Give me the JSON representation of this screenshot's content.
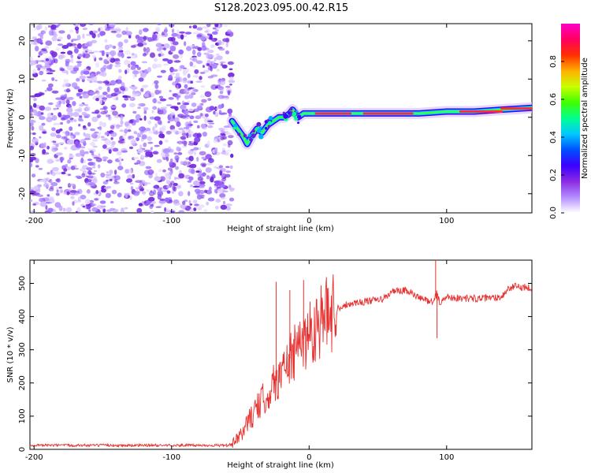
{
  "title": "S128.2023.095.00.42.R15",
  "chart_data": [
    {
      "type": "heatmap",
      "title": "S128.2023.095.00.42.R15",
      "xlabel": "Height of straight line (km)",
      "ylabel": "Frequency (Hz)",
      "xlim": [
        -203,
        162
      ],
      "ylim": [
        -25,
        24.5
      ],
      "xticks": [
        -200,
        -100,
        0,
        100
      ],
      "yticks": [
        -20,
        -10,
        0,
        10,
        20
      ],
      "noise_region_x": [
        -203,
        -56
      ],
      "signal_track": {
        "x": [
          -56,
          -52,
          -48,
          -45,
          -42,
          -38,
          -34,
          -30,
          -26,
          -22,
          -18,
          -14,
          -12,
          -10,
          -8,
          -4,
          0,
          10,
          20,
          40,
          60,
          80,
          100,
          120,
          140,
          162
        ],
        "freq": [
          -1,
          -3,
          -5,
          -7,
          -5,
          -3,
          -4,
          -2,
          -1,
          0,
          0,
          1,
          2,
          1,
          0,
          1,
          1,
          1,
          1,
          1,
          1,
          1,
          1.5,
          1.5,
          2,
          2.5
        ]
      },
      "colorbar": {
        "label": "Normalized spectral amplitude",
        "range": [
          0.0,
          1.0
        ],
        "ticks": [
          "0.0",
          "0.2",
          "0.4",
          "0.6",
          "0.8"
        ],
        "colormap": [
          "#ffffff",
          "#b28cff",
          "#8a2be2",
          "#3b00ff",
          "#0050ff",
          "#00c8ff",
          "#00ff90",
          "#40ff00",
          "#c8ff00",
          "#ffb000",
          "#ff3000",
          "#ff0060",
          "#ff00c8"
        ]
      }
    },
    {
      "type": "line",
      "xlabel": "Height of straight line (km)",
      "ylabel": "SNR (10 * v/v)",
      "xlim": [
        -203,
        162
      ],
      "ylim": [
        0,
        570
      ],
      "xticks": [
        -200,
        -100,
        0,
        100
      ],
      "yticks": [
        0,
        100,
        200,
        300,
        400,
        500
      ],
      "color": "#e8312f",
      "series": [
        {
          "name": "SNR",
          "x": [
            -203,
            -180,
            -160,
            -140,
            -120,
            -100,
            -80,
            -60,
            -56,
            -50,
            -45,
            -40,
            -35,
            -30,
            -25,
            -22,
            -18,
            -15,
            -12,
            -10,
            -8,
            -5,
            -2,
            0,
            5,
            10,
            15,
            20,
            30,
            40,
            50,
            55,
            60,
            70,
            75,
            80,
            85,
            90,
            93,
            95,
            100,
            110,
            120,
            130,
            140,
            145,
            150,
            162
          ],
          "y": [
            12,
            12,
            12,
            12,
            12,
            12,
            12,
            12,
            15,
            40,
            80,
            110,
            140,
            170,
            200,
            220,
            240,
            270,
            280,
            290,
            300,
            330,
            340,
            350,
            375,
            395,
            410,
            425,
            440,
            445,
            450,
            455,
            475,
            478,
            470,
            455,
            450,
            445,
            470,
            440,
            460,
            455,
            455,
            455,
            460,
            485,
            490,
            488
          ]
        }
      ],
      "spikes": [
        {
          "x": -24,
          "y": 505
        },
        {
          "x": -14,
          "y": 480
        },
        {
          "x": -4,
          "y": 510
        },
        {
          "x": 92,
          "y": 570
        },
        {
          "x": 93,
          "y": 335
        }
      ]
    }
  ]
}
